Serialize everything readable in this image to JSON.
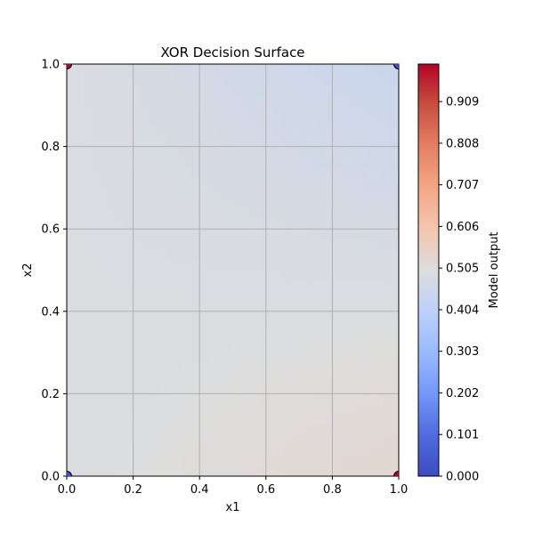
{
  "chart_data": {
    "type": "heatmap",
    "title": "XOR Decision Surface",
    "xlabel": "x1",
    "ylabel": "x2",
    "xlim": [
      0.0,
      1.0
    ],
    "ylim": [
      0.0,
      1.0
    ],
    "x_ticks": [
      "0.0",
      "0.2",
      "0.4",
      "0.6",
      "0.8",
      "1.0"
    ],
    "y_ticks": [
      "0.0",
      "0.2",
      "0.4",
      "0.6",
      "0.8",
      "1.0"
    ],
    "grid": true,
    "colormap": "coolwarm",
    "surface_corners": {
      "x0_y0": 0.49,
      "x1_y0": 0.53,
      "x0_y1": 0.49,
      "x1_y1": 0.44
    },
    "points": [
      {
        "x": 0,
        "y": 0,
        "label": 0,
        "color": "#3b4cc0"
      },
      {
        "x": 1,
        "y": 0,
        "label": 1,
        "color": "#b40426"
      },
      {
        "x": 0,
        "y": 1,
        "label": 1,
        "color": "#b40426"
      },
      {
        "x": 1,
        "y": 1,
        "label": 0,
        "color": "#3b4cc0"
      }
    ],
    "colorbar": {
      "label": "Model output",
      "range": [
        0.0,
        1.0
      ],
      "ticks": [
        "0.000",
        "0.101",
        "0.202",
        "0.303",
        "0.404",
        "0.505",
        "0.606",
        "0.707",
        "0.808",
        "0.909"
      ]
    }
  }
}
